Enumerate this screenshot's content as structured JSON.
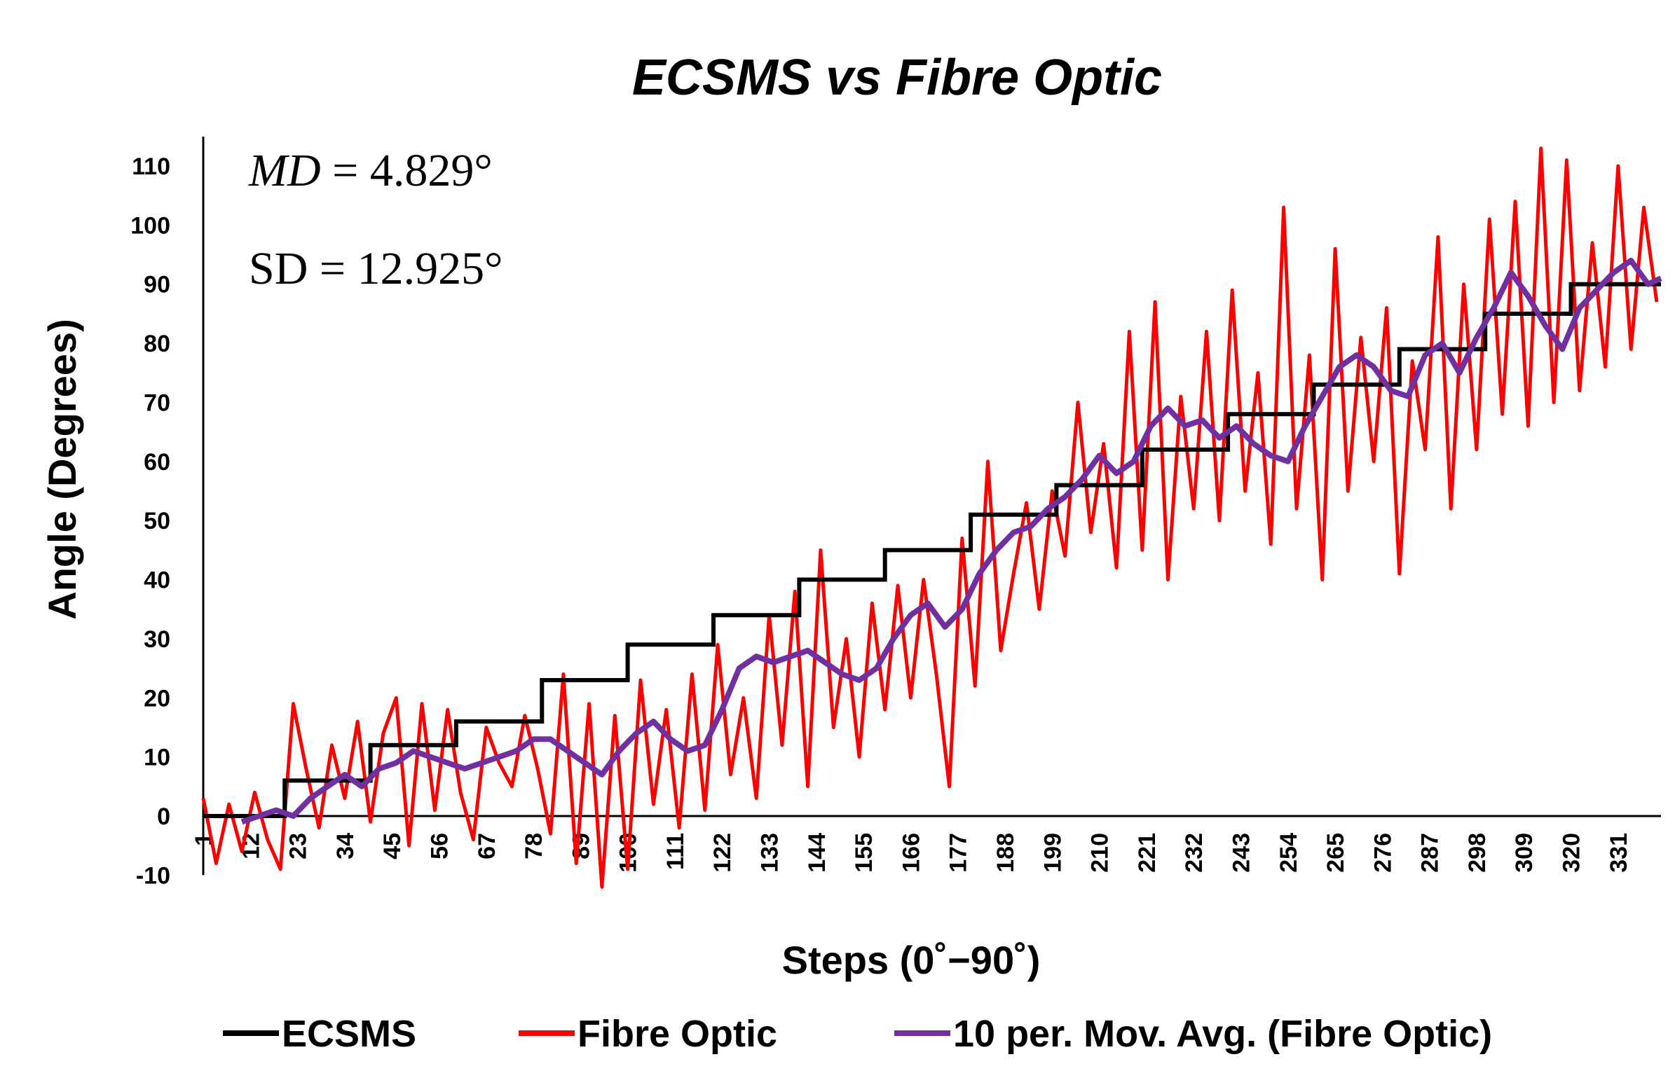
{
  "chart_data": {
    "type": "line",
    "title": "ECSMS vs Fibre Optic",
    "xlabel": "Steps (0˚−90˚)",
    "ylabel": "Angle (Degrees)",
    "ylim": [
      -10,
      115
    ],
    "yticks": [
      -10,
      0,
      10,
      20,
      30,
      40,
      50,
      60,
      70,
      80,
      90,
      100,
      110
    ],
    "xlim": [
      1,
      341
    ],
    "xticks": [
      1,
      12,
      23,
      34,
      45,
      56,
      67,
      78,
      89,
      100,
      111,
      122,
      133,
      144,
      155,
      166,
      177,
      188,
      199,
      210,
      221,
      232,
      243,
      254,
      265,
      276,
      287,
      298,
      309,
      320,
      331
    ],
    "annotations": {
      "md_label": "MD",
      "md_value": " = 4.829°",
      "sd_text": "SD = 12.925°"
    },
    "series": [
      {
        "name": "ECSMS",
        "color": "#000000",
        "steps": [
          {
            "from": 1,
            "to": 20,
            "value": 0
          },
          {
            "from": 20,
            "to": 40,
            "value": 6
          },
          {
            "from": 40,
            "to": 60,
            "value": 12
          },
          {
            "from": 60,
            "to": 80,
            "value": 16
          },
          {
            "from": 80,
            "to": 100,
            "value": 23
          },
          {
            "from": 100,
            "to": 120,
            "value": 29
          },
          {
            "from": 120,
            "to": 140,
            "value": 34
          },
          {
            "from": 140,
            "to": 160,
            "value": 40
          },
          {
            "from": 160,
            "to": 180,
            "value": 45
          },
          {
            "from": 180,
            "to": 200,
            "value": 51
          },
          {
            "from": 200,
            "to": 220,
            "value": 56
          },
          {
            "from": 220,
            "to": 240,
            "value": 62
          },
          {
            "from": 240,
            "to": 260,
            "value": 68
          },
          {
            "from": 260,
            "to": 280,
            "value": 73
          },
          {
            "from": 280,
            "to": 300,
            "value": 79
          },
          {
            "from": 300,
            "to": 320,
            "value": 85
          },
          {
            "from": 320,
            "to": 341,
            "value": 90
          }
        ]
      },
      {
        "name": "Fibre Optic",
        "color": "#ff0000",
        "x": [
          1,
          4,
          7,
          10,
          13,
          16,
          19,
          22,
          25,
          28,
          31,
          34,
          37,
          40,
          43,
          46,
          49,
          52,
          55,
          58,
          61,
          64,
          67,
          70,
          73,
          76,
          79,
          82,
          85,
          88,
          91,
          94,
          97,
          100,
          103,
          106,
          109,
          112,
          115,
          118,
          121,
          124,
          127,
          130,
          133,
          136,
          139,
          142,
          145,
          148,
          151,
          154,
          157,
          160,
          163,
          166,
          169,
          172,
          175,
          178,
          181,
          184,
          187,
          190,
          193,
          196,
          199,
          202,
          205,
          208,
          211,
          214,
          217,
          220,
          223,
          226,
          229,
          232,
          235,
          238,
          241,
          244,
          247,
          250,
          253,
          256,
          259,
          262,
          265,
          268,
          271,
          274,
          277,
          280,
          283,
          286,
          289,
          292,
          295,
          298,
          301,
          304,
          307,
          310,
          313,
          316,
          319,
          322,
          325,
          328,
          331,
          334,
          337,
          340
        ],
        "y": [
          3,
          -8,
          2,
          -6,
          4,
          -4,
          -9,
          19,
          8,
          -2,
          12,
          3,
          16,
          -1,
          14,
          20,
          -5,
          19,
          1,
          18,
          4,
          -4,
          15,
          9,
          5,
          17,
          8,
          -3,
          24,
          -8,
          19,
          -12,
          17,
          -9,
          23,
          2,
          18,
          -2,
          24,
          1,
          29,
          7,
          20,
          3,
          34,
          12,
          38,
          5,
          45,
          15,
          30,
          10,
          36,
          18,
          39,
          20,
          40,
          24,
          5,
          47,
          22,
          60,
          28,
          41,
          53,
          35,
          55,
          44,
          70,
          48,
          63,
          42,
          82,
          45,
          87,
          40,
          71,
          52,
          82,
          50,
          89,
          55,
          75,
          46,
          103,
          52,
          78,
          40,
          96,
          55,
          81,
          60,
          86,
          41,
          77,
          62,
          98,
          52,
          90,
          62,
          101,
          68,
          104,
          66,
          113,
          70,
          111,
          72,
          97,
          76,
          110,
          79,
          103,
          87
        ],
        "lw": 5
      },
      {
        "name": "10 per. Mov. Avg. (Fibre Optic)",
        "color": "#7030a0",
        "x": [
          10,
          14,
          18,
          22,
          26,
          30,
          34,
          38,
          42,
          46,
          50,
          54,
          58,
          62,
          66,
          70,
          74,
          78,
          82,
          86,
          90,
          94,
          98,
          102,
          106,
          110,
          114,
          118,
          122,
          126,
          130,
          134,
          138,
          142,
          146,
          150,
          154,
          158,
          162,
          166,
          170,
          174,
          178,
          182,
          186,
          190,
          194,
          198,
          202,
          206,
          210,
          214,
          218,
          222,
          226,
          230,
          234,
          238,
          242,
          246,
          250,
          254,
          258,
          262,
          266,
          270,
          274,
          278,
          282,
          286,
          290,
          294,
          298,
          302,
          306,
          310,
          314,
          318,
          322,
          326,
          330,
          334,
          338,
          341
        ],
        "y": [
          -1,
          0,
          1,
          0,
          3,
          5,
          7,
          5,
          8,
          9,
          11,
          10,
          9,
          8,
          9,
          10,
          11,
          13,
          13,
          11,
          9,
          7,
          11,
          14,
          16,
          13,
          11,
          12,
          18,
          25,
          27,
          26,
          27,
          28,
          26,
          24,
          23,
          25,
          30,
          34,
          36,
          32,
          35,
          41,
          45,
          48,
          49,
          52,
          54,
          57,
          61,
          58,
          60,
          66,
          69,
          66,
          67,
          64,
          66,
          63,
          61,
          60,
          66,
          71,
          76,
          78,
          76,
          72,
          71,
          78,
          80,
          75,
          81,
          86,
          92,
          88,
          83,
          79,
          86,
          89,
          92,
          94,
          90,
          91
        ]
      }
    ]
  },
  "legend": {
    "items": [
      {
        "label": "ECSMS",
        "color": "#000000"
      },
      {
        "label": "Fibre Optic",
        "color": "#ff0000"
      },
      {
        "label": "10 per. Mov. Avg. (Fibre Optic)",
        "color": "#7030a0"
      }
    ]
  }
}
